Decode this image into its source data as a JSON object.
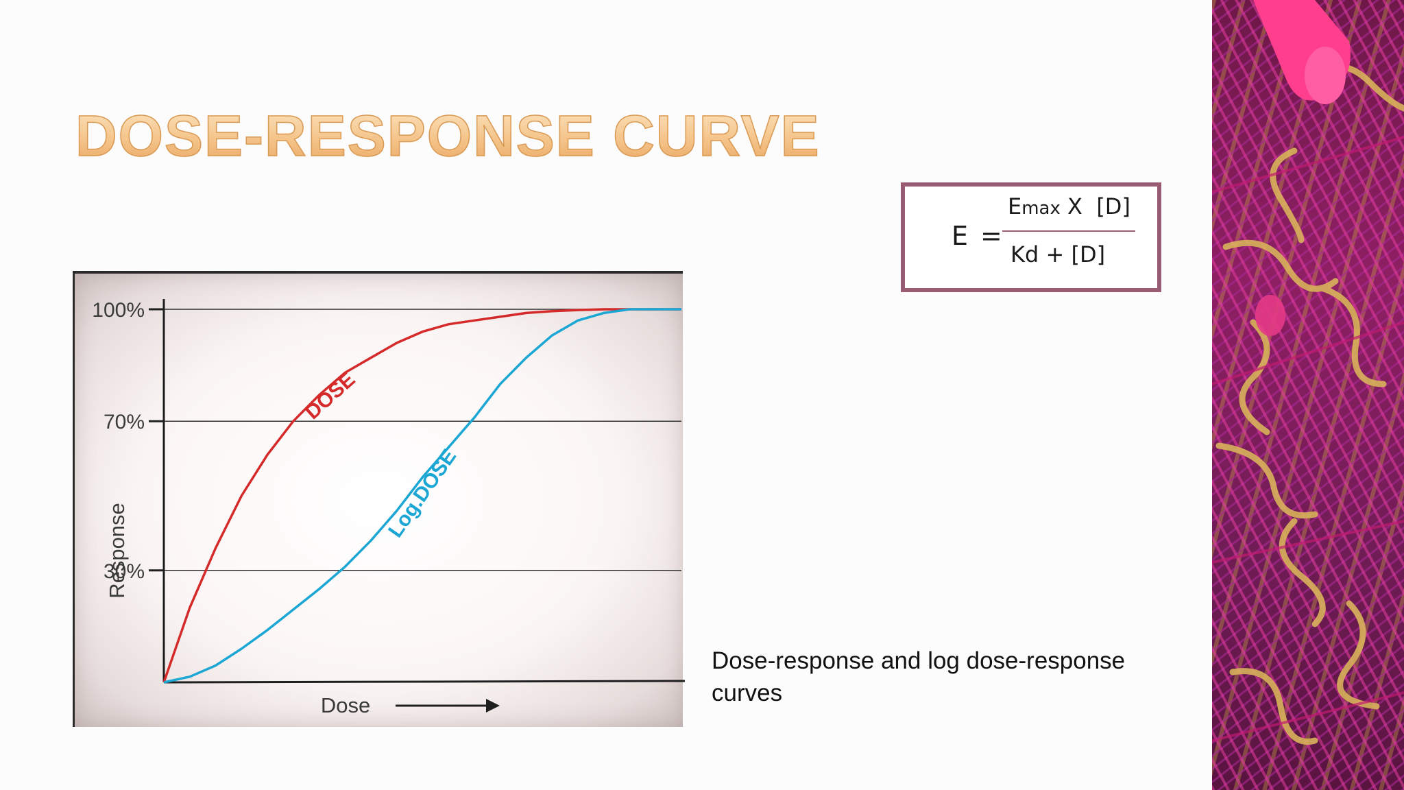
{
  "slide": {
    "title": "DOSE-RESPONSE CURVE",
    "caption": "Dose-response and log dose-response curves"
  },
  "formula": {
    "lhs": "E",
    "equals": "=",
    "numerator_e": "E",
    "numerator_sub": "max",
    "numerator_rest": " X  [D]",
    "denominator": "Kd + [D]"
  },
  "chart_data": {
    "type": "line",
    "title": "",
    "xlabel": "Dose",
    "ylabel": "Response",
    "ylim": [
      0,
      100
    ],
    "xlim": [
      0,
      1
    ],
    "yticks": [
      {
        "value": 30,
        "label": "30%"
      },
      {
        "value": 70,
        "label": "70%"
      },
      {
        "value": 100,
        "label": "100%"
      }
    ],
    "gridlines": [
      30,
      70,
      100
    ],
    "series": [
      {
        "name": "DOSE",
        "color": "#d42a2a",
        "x": [
          0,
          0.05,
          0.1,
          0.15,
          0.2,
          0.25,
          0.3,
          0.35,
          0.4,
          0.45,
          0.5,
          0.55,
          0.6,
          0.65,
          0.7,
          0.75,
          0.8,
          0.85,
          0.9,
          0.95,
          1.0
        ],
        "y": [
          0,
          20,
          36,
          50,
          61,
          70,
          77,
          83,
          87,
          91,
          94,
          96,
          97,
          98,
          99,
          99.5,
          99.8,
          100,
          100,
          100,
          100
        ]
      },
      {
        "name": "Log.DOSE",
        "color": "#1ba6d4",
        "x": [
          0,
          0.05,
          0.1,
          0.15,
          0.2,
          0.25,
          0.3,
          0.35,
          0.4,
          0.45,
          0.5,
          0.55,
          0.6,
          0.65,
          0.7,
          0.75,
          0.8,
          0.85,
          0.9,
          0.95,
          1.0
        ],
        "y": [
          0,
          1.5,
          4.5,
          9,
          14,
          19.5,
          25,
          31,
          38,
          46,
          55,
          63,
          71,
          80,
          87,
          93,
          97,
          99,
          100,
          100,
          100
        ]
      }
    ]
  },
  "colors": {
    "dose": "#d42a2a",
    "log_dose": "#1ba6d4",
    "formula_border": "#9a5c72",
    "title_fill": "#f4c48a"
  }
}
